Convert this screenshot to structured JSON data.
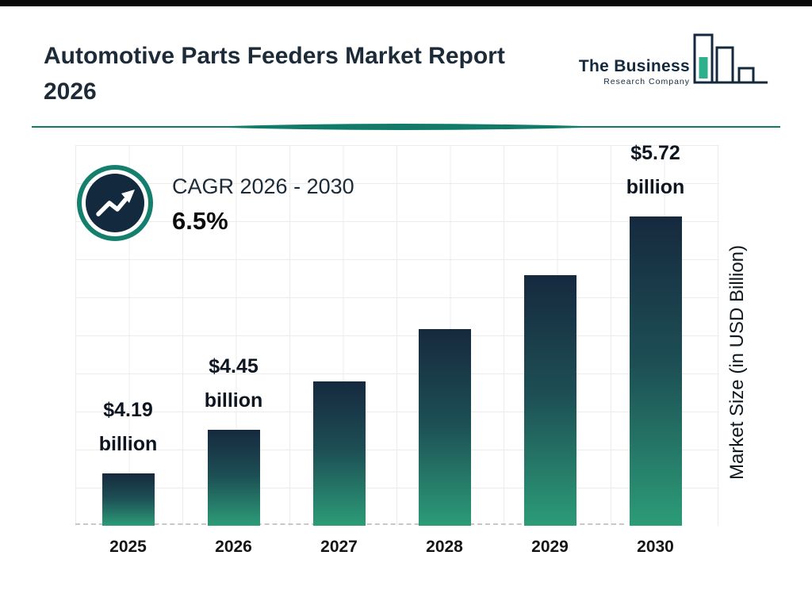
{
  "page": {
    "title": "Automotive Parts Feeders Market Report 2026"
  },
  "logo": {
    "line1": "The Business",
    "line2": "Research Company"
  },
  "cagr": {
    "label": "CAGR 2026 - 2030",
    "value": "6.5%"
  },
  "chart_data": {
    "type": "bar",
    "title": "Automotive Parts Feeders Market Report 2026",
    "categories": [
      "2025",
      "2026",
      "2027",
      "2028",
      "2029",
      "2030"
    ],
    "values": [
      4.19,
      4.45,
      4.74,
      5.05,
      5.37,
      5.72
    ],
    "bar_labels": [
      [
        "$4.19",
        "billion"
      ],
      [
        "$4.45",
        "billion"
      ],
      null,
      null,
      null,
      [
        "$5.72",
        "billion"
      ]
    ],
    "xlabel": "",
    "ylabel": "Market Size (in USD Billion)",
    "ylim": [
      3.88,
      5.9
    ],
    "grid": true,
    "legend": false,
    "colors": {
      "bar_gradient_top": "#16293e",
      "bar_gradient_bottom": "#2c9c77",
      "accent_teal": "#127a68",
      "navy": "#132a3e",
      "logo_teal": "#2eb08c"
    }
  }
}
